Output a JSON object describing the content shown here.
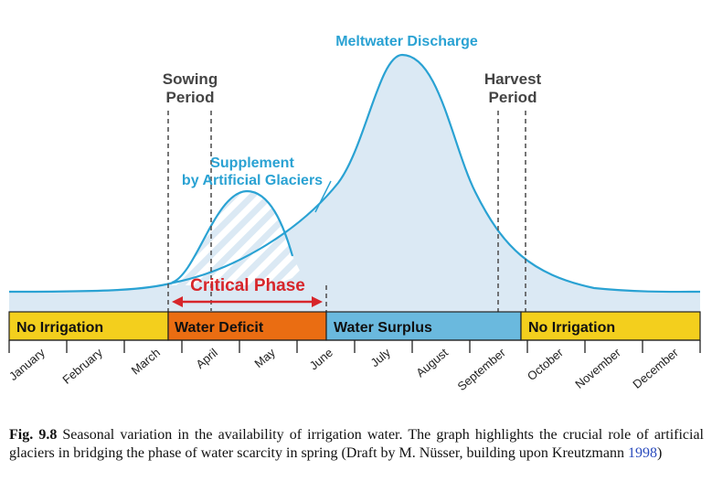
{
  "labels": {
    "meltwater": "Meltwater Discharge",
    "sowing_line1": "Sowing",
    "sowing_line2": "Period",
    "harvest_line1": "Harvest",
    "harvest_line2": "Period",
    "supplement_line1": "Supplement",
    "supplement_line2": "by Artificial Glaciers",
    "critical": "Critical Phase"
  },
  "bands": [
    {
      "label": "No Irrigation",
      "color": "#f3cf1d"
    },
    {
      "label": "Water Deficit",
      "color": "#ea6d12"
    },
    {
      "label": "Water Surplus",
      "color": "#6ab9de"
    },
    {
      "label": "No Irrigation",
      "color": "#f3cf1d"
    }
  ],
  "months": [
    "January",
    "February",
    "March",
    "April",
    "May",
    "June",
    "July",
    "August",
    "September",
    "October",
    "November",
    "December"
  ],
  "colors": {
    "curve": "#2aa2d3",
    "area": "#dbe9f4",
    "critical": "#d7262b",
    "dashed": "#555555"
  },
  "caption": {
    "fig_no": "Fig. 9.8",
    "text": "Seasonal variation in the availability of irrigation water. The graph highlights the crucial role of artificial glaciers in bridging the phase of water scarcity in spring (Draft by M. Nüsser, building upon Kreutzmann",
    "year": "1998",
    "close": ")"
  }
}
